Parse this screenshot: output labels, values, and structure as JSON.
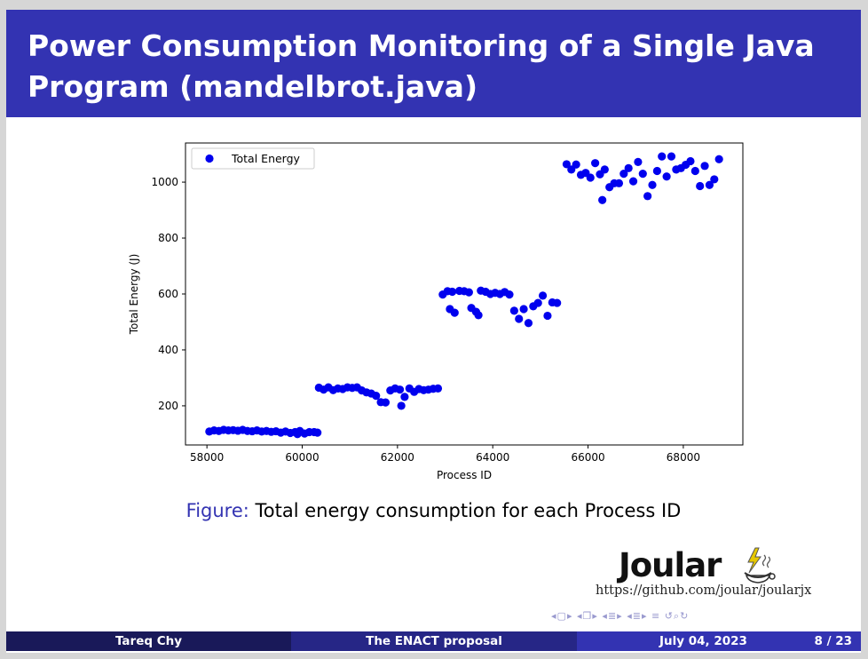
{
  "slide": {
    "title": "Power Consumption Monitoring of a Single Java Program (mandelbrot.java)",
    "caption_label": "Figure:",
    "caption_text": "Total energy consumption for each Process ID",
    "logo_text": "Joular",
    "repo_url": "https://github.com/joular/joularjx"
  },
  "footer": {
    "author": "Tareq Chy",
    "talk_title": "The ENACT proposal",
    "date": "July 04, 2023",
    "page": "8 / 23"
  },
  "nav_icons": [
    "nav-prev-frame-icon",
    "nav-frame-icon",
    "nav-next-frame-icon",
    "nav-prev-subsection-icon",
    "nav-subsection-icon",
    "nav-next-subsection-icon",
    "nav-prev-section-icon",
    "nav-section-icon",
    "nav-next-section-icon",
    "nav-align-icon",
    "nav-back-icon",
    "nav-search-icon"
  ],
  "colors": {
    "title_bg": "#3333b2",
    "footer_author_bg": "#191959",
    "footer_title_bg": "#262686",
    "footer_date_bg": "#3333b2",
    "marker": "#0000ee",
    "logo_accent": "#e6c800"
  },
  "chart_data": {
    "type": "scatter",
    "xlabel": "Process ID",
    "ylabel": "Total Energy (J)",
    "legend": {
      "entries": [
        "Total Energy"
      ],
      "placement": "top-left"
    },
    "grid": false,
    "xlim": [
      57550,
      69250
    ],
    "ylim": [
      60,
      1140
    ],
    "xticks": [
      58000,
      60000,
      62000,
      64000,
      66000,
      68000
    ],
    "yticks": [
      200,
      400,
      600,
      800,
      1000
    ],
    "series": [
      {
        "name": "Total Energy",
        "points": [
          [
            58050,
            108
          ],
          [
            58150,
            112
          ],
          [
            58250,
            110
          ],
          [
            58350,
            114
          ],
          [
            58450,
            112
          ],
          [
            58550,
            113
          ],
          [
            58650,
            111
          ],
          [
            58750,
            114
          ],
          [
            58850,
            110
          ],
          [
            58950,
            109
          ],
          [
            59050,
            112
          ],
          [
            59150,
            108
          ],
          [
            59250,
            110
          ],
          [
            59350,
            107
          ],
          [
            59450,
            109
          ],
          [
            59550,
            104
          ],
          [
            59650,
            108
          ],
          [
            59750,
            103
          ],
          [
            59850,
            106
          ],
          [
            59900,
            99
          ],
          [
            59950,
            110
          ],
          [
            60050,
            101
          ],
          [
            60150,
            106
          ],
          [
            60250,
            106
          ],
          [
            60320,
            104
          ],
          [
            60350,
            265
          ],
          [
            60450,
            258
          ],
          [
            60550,
            266
          ],
          [
            60650,
            256
          ],
          [
            60750,
            262
          ],
          [
            60850,
            260
          ],
          [
            60950,
            266
          ],
          [
            61050,
            264
          ],
          [
            61150,
            266
          ],
          [
            61250,
            255
          ],
          [
            61350,
            248
          ],
          [
            61450,
            244
          ],
          [
            61550,
            236
          ],
          [
            61650,
            213
          ],
          [
            61750,
            212
          ],
          [
            61850,
            255
          ],
          [
            61950,
            262
          ],
          [
            62050,
            258
          ],
          [
            62080,
            200
          ],
          [
            62150,
            232
          ],
          [
            62250,
            262
          ],
          [
            62350,
            250
          ],
          [
            62450,
            260
          ],
          [
            62550,
            256
          ],
          [
            62650,
            258
          ],
          [
            62750,
            261
          ],
          [
            62850,
            262
          ],
          [
            62950,
            598
          ],
          [
            63050,
            610
          ],
          [
            63100,
            546
          ],
          [
            63150,
            608
          ],
          [
            63200,
            533
          ],
          [
            63300,
            611
          ],
          [
            63400,
            610
          ],
          [
            63500,
            606
          ],
          [
            63550,
            550
          ],
          [
            63650,
            536
          ],
          [
            63700,
            524
          ],
          [
            63750,
            612
          ],
          [
            63850,
            608
          ],
          [
            63950,
            600
          ],
          [
            64050,
            604
          ],
          [
            64150,
            600
          ],
          [
            64250,
            607
          ],
          [
            64350,
            598
          ],
          [
            64450,
            540
          ],
          [
            64550,
            511
          ],
          [
            64650,
            546
          ],
          [
            64750,
            496
          ],
          [
            64850,
            556
          ],
          [
            64950,
            568
          ],
          [
            65050,
            594
          ],
          [
            65150,
            522
          ],
          [
            65250,
            570
          ],
          [
            65350,
            568
          ],
          [
            65550,
            1064
          ],
          [
            65650,
            1045
          ],
          [
            65750,
            1063
          ],
          [
            65850,
            1026
          ],
          [
            65950,
            1033
          ],
          [
            66050,
            1016
          ],
          [
            66150,
            1068
          ],
          [
            66250,
            1028
          ],
          [
            66300,
            936
          ],
          [
            66350,
            1045
          ],
          [
            66450,
            982
          ],
          [
            66550,
            996
          ],
          [
            66650,
            996
          ],
          [
            66750,
            1030
          ],
          [
            66850,
            1050
          ],
          [
            66950,
            1003
          ],
          [
            67050,
            1072
          ],
          [
            67150,
            1030
          ],
          [
            67250,
            950
          ],
          [
            67350,
            990
          ],
          [
            67450,
            1040
          ],
          [
            67550,
            1092
          ],
          [
            67650,
            1020
          ],
          [
            67750,
            1092
          ],
          [
            67850,
            1045
          ],
          [
            67950,
            1050
          ],
          [
            68050,
            1062
          ],
          [
            68150,
            1075
          ],
          [
            68250,
            1040
          ],
          [
            68350,
            986
          ],
          [
            68450,
            1058
          ],
          [
            68550,
            990
          ],
          [
            68650,
            1010
          ],
          [
            68750,
            1082
          ]
        ]
      }
    ]
  }
}
